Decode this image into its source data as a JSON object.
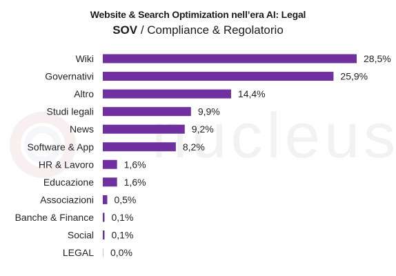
{
  "header": {
    "title": "Website & Search Optimization nell’era AI: Legal",
    "subtitle_bold": "SOV",
    "subtitle_rest": " / Compliance & Regolatorio"
  },
  "watermark": {
    "text": "nucleus",
    "icon": "gear-logo-icon"
  },
  "colors": {
    "bar": "#7030a0",
    "zero_bar": "#c7c7c7",
    "watermark": "#f2f2f2"
  },
  "chart_data": {
    "type": "bar",
    "orientation": "horizontal",
    "title": "Website & Search Optimization nell’era AI: Legal",
    "subtitle": "SOV / Compliance & Regolatorio",
    "categories": [
      "Wiki",
      "Governativi",
      "Altro",
      "Studi legali",
      "News",
      "Software & App",
      "HR & Lavoro",
      "Educazione",
      "Associazioni",
      "Banche & Finance",
      "Social",
      "LEGAL"
    ],
    "values": [
      28.5,
      25.9,
      14.4,
      9.9,
      9.2,
      8.2,
      1.6,
      1.6,
      0.5,
      0.1,
      0.1,
      0.0
    ],
    "value_labels": [
      "28,5%",
      "25,9%",
      "14,4%",
      "9,9%",
      "9,2%",
      "8,2%",
      "1,6%",
      "1,6%",
      "0,5%",
      "0,1%",
      "0,1%",
      "0,0%"
    ],
    "unit": "%",
    "xlim": [
      0,
      28.5
    ],
    "grid": false,
    "legend": "none"
  }
}
